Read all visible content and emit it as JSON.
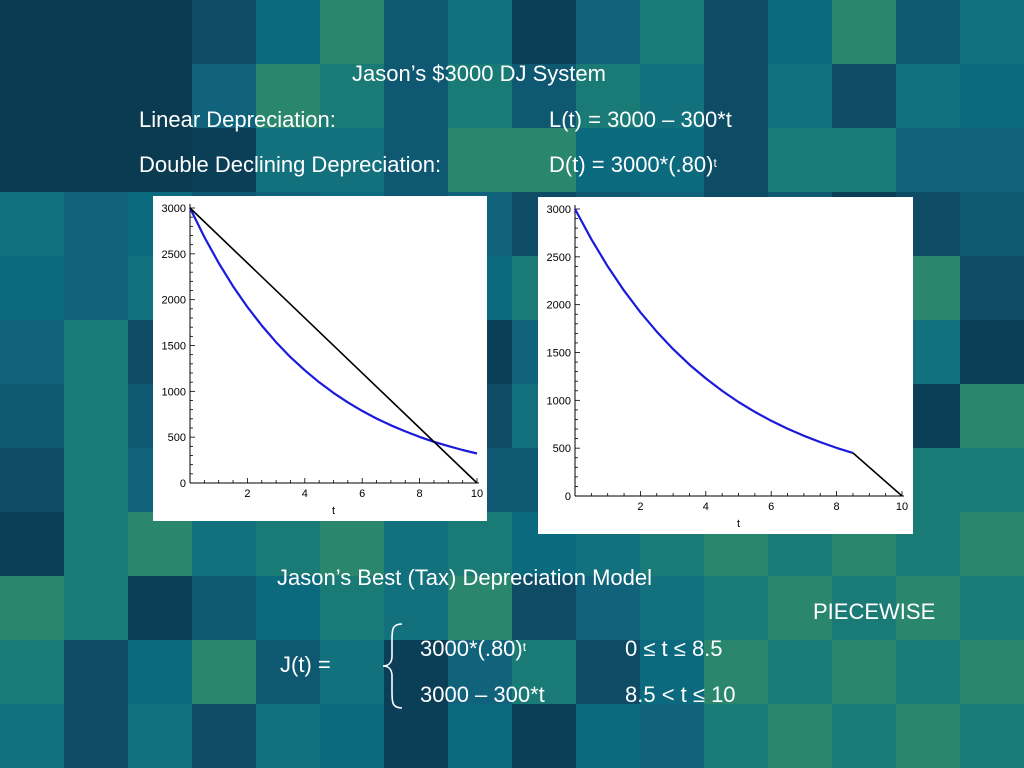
{
  "colors": {
    "background": "#0d4a63",
    "text": "#ffffff",
    "blue_series": "#1a1adc",
    "black_series": "#000000",
    "panel": "#ffffff"
  },
  "slide": {
    "title": "Jason’s $3000 DJ System",
    "linear_label": "Linear Depreciation:",
    "linear_formula": "L(t) = 3000 – 300*t",
    "double_label": "Double Declining Depreciation:",
    "double_formula_base": "D(t) = 3000*(.80)",
    "double_formula_exp": "t",
    "model_title": "Jason’s Best (Tax) Depreciation Model",
    "piecewise_label": "PIECEWISE",
    "j_label": "J(t) =",
    "case1_formula_base": "3000*(.80)",
    "case1_formula_exp": "t",
    "case1_condition": "0 ≤ t ≤ 8.5",
    "case2_formula": "3000 – 300*t",
    "case2_condition": "8.5 < t ≤  10"
  },
  "chart_data": [
    {
      "type": "line",
      "xlabel": "t",
      "ylabel": "",
      "xlim": [
        0,
        10
      ],
      "ylim": [
        0,
        3000
      ],
      "x_ticks": [
        2,
        4,
        6,
        8,
        10
      ],
      "y_ticks": [
        0,
        500,
        1000,
        1500,
        2000,
        2500,
        3000
      ],
      "grid": false,
      "series": [
        {
          "color": "#1a1adc",
          "x": [
            0,
            0.5,
            1,
            1.5,
            2,
            2.5,
            3,
            3.5,
            4,
            4.5,
            5,
            5.5,
            6,
            6.5,
            7,
            7.5,
            8,
            8.5,
            9,
            9.5,
            10
          ],
          "y": [
            3000,
            2683,
            2400,
            2147,
            1920,
            1717,
            1536,
            1374,
            1229,
            1099,
            983,
            879,
            786,
            703,
            629,
            563,
            503,
            450,
            403,
            360,
            322
          ]
        },
        {
          "color": "#000000",
          "x": [
            0,
            10
          ],
          "y": [
            3000,
            0
          ]
        }
      ]
    },
    {
      "type": "line",
      "xlabel": "t",
      "ylabel": "",
      "xlim": [
        0,
        10
      ],
      "ylim": [
        0,
        3000
      ],
      "x_ticks": [
        2,
        4,
        6,
        8,
        10
      ],
      "y_ticks": [
        0,
        500,
        1000,
        1500,
        2000,
        2500,
        3000
      ],
      "grid": false,
      "series": [
        {
          "color": "#1a1adc",
          "x": [
            0,
            0.5,
            1,
            1.5,
            2,
            2.5,
            3,
            3.5,
            4,
            4.5,
            5,
            5.5,
            6,
            6.5,
            7,
            7.5,
            8,
            8.5
          ],
          "y": [
            3000,
            2683,
            2400,
            2147,
            1920,
            1717,
            1536,
            1374,
            1229,
            1099,
            983,
            879,
            786,
            703,
            629,
            563,
            503,
            450
          ]
        },
        {
          "color": "#000000",
          "x": [
            8.5,
            10
          ],
          "y": [
            450,
            0
          ]
        }
      ]
    }
  ]
}
